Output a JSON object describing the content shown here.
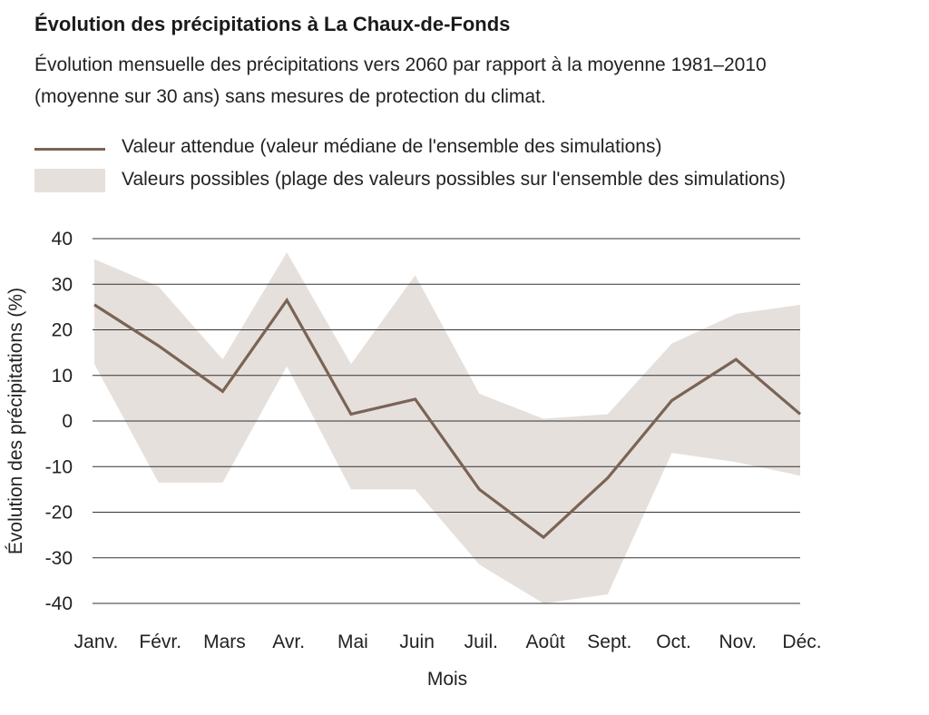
{
  "title": "Évolution des précipitations à La Chaux-de-Fonds",
  "subtitle": "Évolution mensuelle des précipitations vers 2060 par rapport à la moyenne 1981–2010 (moyenne sur 30 ans) sans mesures de protection du climat.",
  "legend": {
    "median": "Valeur attendue (valeur médiane de l'ensemble des simulations)",
    "range": "Valeurs possibles (plage des valeurs possibles sur l'ensemble des simulations)"
  },
  "colors": {
    "line": "#7a6455",
    "band": "#e6e0dd",
    "grid": "#333333"
  },
  "chart_data": {
    "type": "line",
    "xlabel": "Mois",
    "ylabel": "Évolution des précipitations (%)",
    "ylim": [
      -40,
      40
    ],
    "yticks": [
      "-40",
      "-30",
      "-20",
      "-10",
      "0",
      "10",
      "20",
      "30",
      "40"
    ],
    "categories": [
      "Janv.",
      "Févr.",
      "Mars",
      "Avr.",
      "Mai",
      "Juin",
      "Juil.",
      "Août",
      "Sept.",
      "Oct.",
      "Nov.",
      "Déc."
    ],
    "series": [
      {
        "name": "Valeur attendue (valeur médiane de l'ensemble des simulations)",
        "values": [
          25.5,
          16.5,
          6.5,
          26.5,
          1.5,
          4.8,
          -15,
          -25.5,
          -12.5,
          4.5,
          13.5,
          1.5
        ]
      }
    ],
    "band": {
      "name": "Valeurs possibles (plage des valeurs possibles sur l'ensemble des simulations)",
      "upper": [
        35.5,
        29.5,
        13.5,
        37,
        12.5,
        32,
        6,
        0.5,
        1.5,
        17,
        23.5,
        25.5
      ],
      "lower": [
        12.5,
        -13.5,
        -13.5,
        12,
        -15,
        -15,
        -31.5,
        -40,
        -38,
        -7,
        -9,
        -12
      ]
    },
    "grid": true,
    "legend_position": "top"
  }
}
